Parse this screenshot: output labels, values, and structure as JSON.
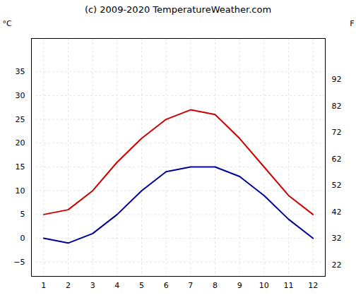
{
  "chart_data": {
    "type": "line",
    "title": "(c) 2009-2020 TemperatureWeather.com",
    "ylabel": "°C",
    "y2label": "F",
    "x": [
      1,
      2,
      3,
      4,
      5,
      6,
      7,
      8,
      9,
      10,
      11,
      12
    ],
    "series": [
      {
        "color": "#cc0000",
        "values": [
          5,
          6,
          10,
          16,
          21,
          25,
          27,
          26,
          21,
          15,
          9,
          5
        ]
      },
      {
        "color": "#000099",
        "values": [
          0,
          -1,
          1,
          5,
          10,
          14,
          15,
          15,
          13,
          9,
          4,
          0
        ]
      }
    ],
    "xlim": [
      0.5,
      12.5
    ],
    "xticks": [
      1,
      2,
      3,
      4,
      5,
      6,
      7,
      8,
      9,
      10,
      11,
      12
    ],
    "ylim": [
      -8,
      42
    ],
    "yticks": [
      -5,
      0,
      5,
      10,
      15,
      20,
      25,
      30,
      35
    ],
    "y2lim": [
      17.6,
      107.6
    ],
    "y2ticks": [
      22,
      32,
      42,
      52,
      62,
      72,
      82,
      92
    ],
    "grid": true
  }
}
